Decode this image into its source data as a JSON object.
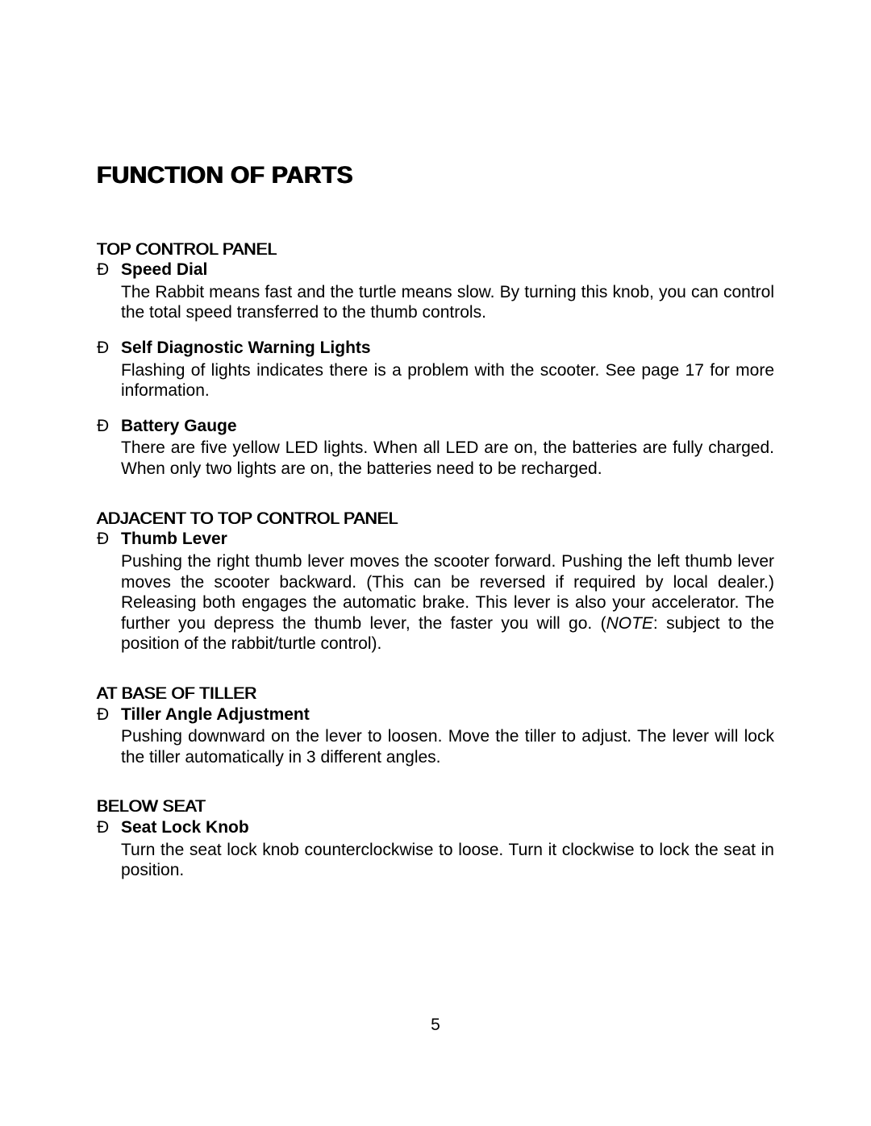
{
  "document": {
    "heading": "FUNCTION OF PARTS",
    "bullet_char": "Ð",
    "text_color": "#000000",
    "background_color": "#ffffff",
    "heading_fontsize": 30,
    "body_fontsize": 21,
    "font_family": "Arial",
    "sections": [
      {
        "title": "TOP CONTROL PANEL",
        "items": [
          {
            "title": "Speed Dial",
            "body": "The Rabbit means fast and the turtle means slow.  By turning this knob, you can control the total speed transferred to the thumb controls."
          },
          {
            "title": "Self Diagnostic Warning Lights",
            "body": "Flashing of lights indicates there is a problem with the scooter.  See page 17 for more information."
          },
          {
            "title": "Battery Gauge",
            "body": "There are five yellow LED lights.  When all LED are on, the batteries are fully charged.  When only two lights are on, the batteries need to be recharged."
          }
        ]
      },
      {
        "title": "ADJACENT TO TOP CONTROL PANEL",
        "items": [
          {
            "title": "Thumb Lever",
            "body_prefix": "Pushing the right thumb lever moves the scooter forward.  Pushing the left thumb lever moves the scooter backward.  (This can be reversed if required by local dealer.)  Releasing both engages the automatic brake.  This lever is also your accelerator.  The further you depress the thumb lever, the faster you will go.  (",
            "note_label": "NOTE",
            "body_suffix": ": subject to the position of the rabbit/turtle control)."
          }
        ]
      },
      {
        "title": "AT BASE OF TILLER",
        "items": [
          {
            "title": "Tiller Angle Adjustment",
            "body": "Pushing downward on the lever to loosen.  Move the tiller to adjust.  The lever will lock the tiller automatically in 3 different angles."
          }
        ]
      },
      {
        "title": "BELOW SEAT",
        "items": [
          {
            "title": "Seat Lock Knob",
            "body": "Turn the seat lock knob counterclockwise to loose.  Turn it clockwise to lock the seat in position."
          }
        ]
      }
    ],
    "page_number": "5"
  }
}
